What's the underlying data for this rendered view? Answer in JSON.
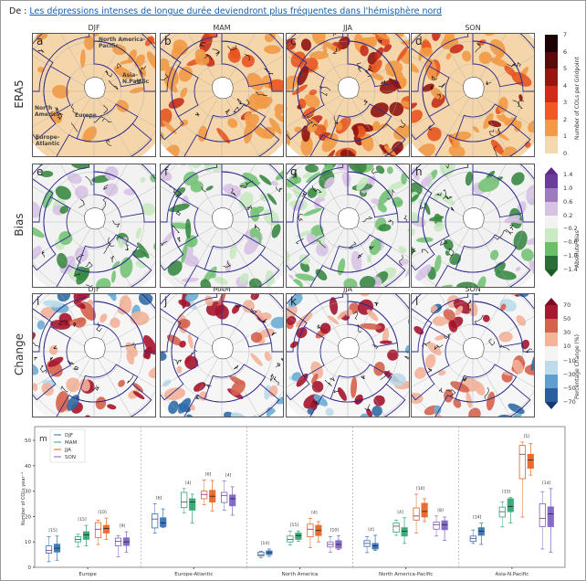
{
  "header": {
    "prefix": "De : ",
    "link": "Les dépressions intenses de longue durée deviendront plus fréquentes dans l'hémisphère nord"
  },
  "seasons": [
    "DJF",
    "MAM",
    "JJA",
    "SON"
  ],
  "rows": [
    {
      "label": "ERA5",
      "letters": [
        "a",
        "b",
        "c",
        "d"
      ]
    },
    {
      "label": "Bias",
      "letters": [
        "e",
        "f",
        "g",
        "h"
      ]
    },
    {
      "label": "Change",
      "letters": [
        "i",
        "j",
        "k",
        "l"
      ]
    }
  ],
  "region_labels": [
    "North America-\nPacific",
    "Asia-\nN.Pacific",
    "North\nAmerica",
    "Europe",
    "Europe-\nAtlantic"
  ],
  "colorbars": [
    {
      "label": "Number of COLs per Gridpoint",
      "ticks": [
        "7",
        "6",
        "5",
        "4",
        "3",
        "2",
        "1",
        "0"
      ],
      "colors": [
        "#1c0204",
        "#5a0a0a",
        "#9b1510",
        "#cf2a1a",
        "#f05a22",
        "#f49a45",
        "#f4d8b0"
      ]
    },
    {
      "label": "Absolute Bias",
      "ticks": [
        "1.4",
        "1.0",
        "0.6",
        "0.2",
        "−0.2",
        "−0.6",
        "−1.0",
        "−1.4"
      ],
      "colors": [
        "#5d2a86",
        "#6b3d9a",
        "#9d7bbd",
        "#d6c2e3",
        "#f2f2f2",
        "#c9eac3",
        "#6cbf6a",
        "#2b6d37",
        "#1f5a2c"
      ]
    },
    {
      "label": "Percentage Change (%)",
      "ticks": [
        "70",
        "50",
        "30",
        "10",
        "−10",
        "−30",
        "−50",
        "−70"
      ],
      "colors": [
        "#7a0a22",
        "#a8182e",
        "#d6604d",
        "#f3b49a",
        "#f4f4f4",
        "#bcdcec",
        "#5e9fcf",
        "#2b5e9f",
        "#16386e"
      ]
    }
  ],
  "chart_data": {
    "type": "box",
    "panel_letter": "m",
    "ylabel": "Number of COLs year⁻¹",
    "ylim": [
      0,
      55
    ],
    "yticks": [
      0,
      10,
      20,
      30,
      40,
      50
    ],
    "legend": [
      "DJF",
      "MAM",
      "JJA",
      "SON"
    ],
    "legend_placement": "top-left",
    "series_colors": {
      "DJF": "#2f6fb5",
      "MAM": "#2fa36e",
      "JJA": "#e5621f",
      "SON": "#7b5fc0"
    },
    "note": "hollow = ERA5, filled = model",
    "categories": [
      "Europe",
      "Europe-Atlantic",
      "North America",
      "North America-Pacific",
      "Asia-N.Pacific"
    ],
    "groups": [
      {
        "region": "Europe",
        "boxes": [
          {
            "season": "DJF",
            "count": "[15]",
            "era5": [
              2.2,
              5.6,
              6.6,
              8.4,
              12
            ],
            "model": [
              2.8,
              6,
              7.5,
              9.1,
              12.3
            ]
          },
          {
            "season": "MAM",
            "count": "[15]",
            "era5": [
              8,
              10,
              11,
              12,
              13
            ],
            "model": [
              8.5,
              11,
              12.8,
              14,
              16.5
            ]
          },
          {
            "season": "JJA",
            "count": "[10]",
            "era5": [
              9,
              11.7,
              15,
              17.6,
              18.6
            ],
            "model": [
              11,
              13.5,
              15.3,
              16.5,
              19.4
            ]
          },
          {
            "season": "SON",
            "count": "[9]",
            "era5": [
              4.2,
              8.5,
              10.2,
              11.5,
              12.5
            ],
            "model": [
              6,
              8.6,
              10,
              11.6,
              14
            ]
          }
        ]
      },
      {
        "region": "Europe-Atlantic",
        "boxes": [
          {
            "season": "DJF",
            "count": "[6]",
            "era5": [
              13.5,
              15.5,
              19,
              21,
              25
            ],
            "model": [
              15.7,
              16,
              17.5,
              19.5,
              23
            ]
          },
          {
            "season": "MAM",
            "count": "[4]",
            "era5": [
              21.5,
              23.5,
              25.7,
              29.5,
              31
            ],
            "model": [
              17.5,
              22.5,
              25.7,
              27,
              28.8
            ]
          },
          {
            "season": "JJA",
            "count": "[6]",
            "era5": [
              24.7,
              27,
              28.7,
              30,
              34.4
            ],
            "model": [
              22.2,
              25.7,
              28,
              30.3,
              34.2
            ]
          },
          {
            "season": "SON",
            "count": "[4]",
            "era5": [
              22.5,
              25.5,
              28.3,
              29.5,
              34
            ],
            "model": [
              20.5,
              24.2,
              27,
              28.5,
              31.7
            ]
          }
        ]
      },
      {
        "region": "North America",
        "boxes": [
          {
            "season": "DJF",
            "count": "[14]",
            "era5": [
              3.8,
              4.5,
              5,
              6,
              6.3
            ],
            "model": [
              4.3,
              5,
              5.8,
              6.5,
              7.2
            ]
          },
          {
            "season": "MAM",
            "count": "[15]",
            "era5": [
              8.8,
              10,
              11,
              12.3,
              14.3
            ],
            "model": [
              10.3,
              11,
              12.5,
              13.5,
              14.3
            ]
          },
          {
            "season": "JJA",
            "count": "[4]",
            "era5": [
              7.8,
              12,
              15,
              17,
              19.3
            ],
            "model": [
              10,
              12.5,
              14.5,
              16.5,
              18
            ]
          },
          {
            "season": "SON",
            "count": "[10]",
            "era5": [
              6,
              8,
              9,
              10,
              12
            ],
            "model": [
              7,
              7.5,
              9,
              10.5,
              12.5
            ]
          }
        ]
      },
      {
        "region": "North America-Pacific",
        "boxes": [
          {
            "season": "DJF",
            "count": "[4]",
            "era5": [
              5.8,
              8.2,
              9.4,
              10.5,
              12
            ],
            "model": [
              6.6,
              7.2,
              8.4,
              9.4,
              12.6
            ]
          },
          {
            "season": "MAM",
            "count": "[4]",
            "era5": [
              12.6,
              13.8,
              16.2,
              17.4,
              18.6
            ],
            "model": [
              9.4,
              12.3,
              14.2,
              15.6,
              19.5
            ]
          },
          {
            "season": "JJA",
            "count": "[10]",
            "era5": [
              13.5,
              18.6,
              20.2,
              23.4,
              28.8
            ],
            "model": [
              18,
              19.8,
              22,
              25.2,
              27
            ]
          },
          {
            "season": "SON",
            "count": "[8]",
            "era5": [
              12.3,
              15,
              16.8,
              17.8,
              20.2
            ],
            "model": [
              10.6,
              14.8,
              16.8,
              18.3,
              19.8
            ]
          }
        ]
      },
      {
        "region": "Asia-N.Pacific",
        "boxes": [
          {
            "season": "DJF",
            "count": "[14]",
            "era5": [
              9.4,
              10.2,
              11.4,
              12.3,
              14.7
            ],
            "model": [
              9,
              12.6,
              14.2,
              15.6,
              17.4
            ]
          },
          {
            "season": "MAM",
            "count": "[15]",
            "era5": [
              15.9,
              19.8,
              21.9,
              23.7,
              25.8
            ],
            "model": [
              17.4,
              21.9,
              24,
              27,
              27.6
            ]
          },
          {
            "season": "JJA",
            "count": "[5]",
            "era5": [
              19.8,
              34.9,
              44.5,
              48,
              49.3
            ],
            "model": [
              36.3,
              39,
              42.3,
              44.5,
              48.7
            ]
          },
          {
            "season": "SON",
            "count": "[14]",
            "era5": [
              7.2,
              16,
              19.2,
              25,
              29.8
            ],
            "model": [
              6,
              16,
              21,
              23.8,
              31
            ]
          }
        ]
      }
    ]
  }
}
